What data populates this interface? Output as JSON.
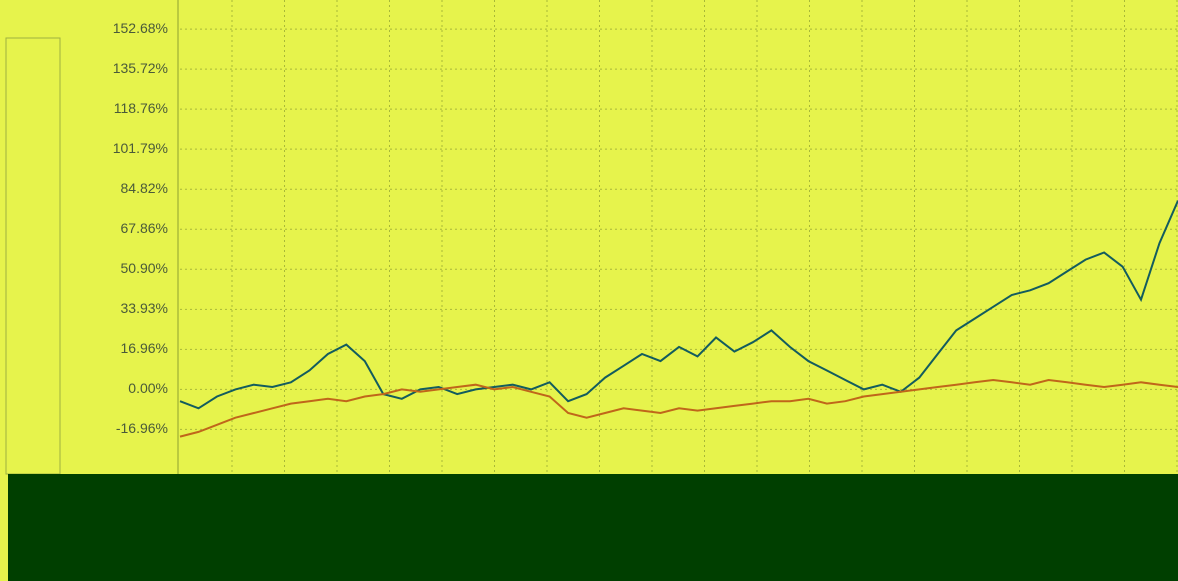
{
  "chart_data": {
    "type": "line",
    "yticks": [
      {
        "value": 152.68,
        "label": "152.68%"
      },
      {
        "value": 135.72,
        "label": "135.72%"
      },
      {
        "value": 118.76,
        "label": "118.76%"
      },
      {
        "value": 101.79,
        "label": "101.79%"
      },
      {
        "value": 84.82,
        "label": "84.82%"
      },
      {
        "value": 67.86,
        "label": "67.86%"
      },
      {
        "value": 50.9,
        "label": "50.90%"
      },
      {
        "value": 33.93,
        "label": "33.93%"
      },
      {
        "value": 16.96,
        "label": "16.96%"
      },
      {
        "value": 0,
        "label": "0.00%"
      },
      {
        "value": -16.96,
        "label": "-16.96%"
      }
    ],
    "ylim": [
      -35,
      165
    ],
    "grid": true,
    "series": [
      {
        "color": "#135c5e",
        "values": [
          -5,
          -8,
          -3,
          0,
          2,
          1,
          3,
          8,
          15,
          19,
          12,
          -2,
          -4,
          0,
          1,
          -2,
          0,
          1,
          2,
          0,
          3,
          -5,
          -2,
          5,
          10,
          15,
          12,
          18,
          14,
          22,
          16,
          20,
          25,
          18,
          12,
          8,
          4,
          0,
          2,
          -1,
          5,
          15,
          25,
          30,
          35,
          40,
          42,
          45,
          50,
          55,
          58,
          52,
          38,
          62,
          80
        ]
      },
      {
        "color": "#c0661a",
        "values": [
          -20,
          -18,
          -15,
          -12,
          -10,
          -8,
          -6,
          -5,
          -4,
          -5,
          -3,
          -2,
          0,
          -1,
          0,
          1,
          2,
          0,
          1,
          -1,
          -3,
          -10,
          -12,
          -10,
          -8,
          -9,
          -10,
          -8,
          -9,
          -8,
          -7,
          -6,
          -5,
          -5,
          -4,
          -6,
          -5,
          -3,
          -2,
          -1,
          0,
          1,
          2,
          3,
          4,
          3,
          2,
          4,
          3,
          2,
          1,
          2,
          3,
          2,
          1
        ]
      }
    ]
  }
}
